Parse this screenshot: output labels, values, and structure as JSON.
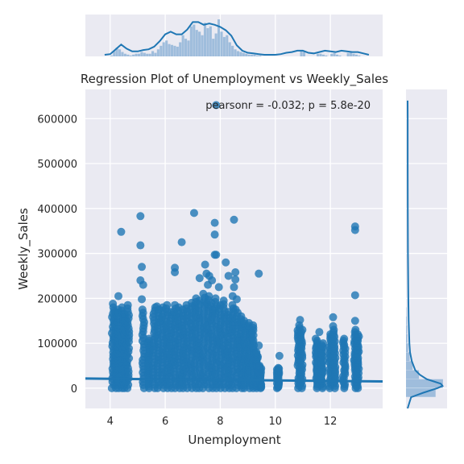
{
  "chart_data": {
    "type": "scatter",
    "title": "Regression Plot of Unemployment vs Weekly_Sales",
    "xlabel": "Unemployment",
    "ylabel": "Weekly_Sales",
    "annotation": "pearsonr = -0.032; p = 5.8e-20",
    "xlim": [
      3.1,
      13.9
    ],
    "ylim": [
      -45000,
      665000
    ],
    "xticks": [
      4,
      6,
      8,
      10,
      12
    ],
    "xtick_labels": [
      "4",
      "6",
      "8",
      "10",
      "12"
    ],
    "yticks": [
      0,
      100000,
      200000,
      300000,
      400000,
      500000,
      600000
    ],
    "ytick_labels": [
      "0",
      "100000",
      "200000",
      "300000",
      "400000",
      "500000",
      "600000"
    ],
    "grid": true,
    "colors": {
      "points": "#1f77b4",
      "regression": "#1f77b4",
      "hist": "#7fa9d3",
      "background": "#eaeaf2",
      "grid": "#ffffff"
    },
    "regression_line": {
      "x": [
        3.1,
        13.9
      ],
      "y": [
        21500,
        15000
      ]
    },
    "clusters": [
      {
        "x": 4.1,
        "ymax": 180000
      },
      {
        "x": 4.2,
        "ymax": 170000
      },
      {
        "x": 4.3,
        "ymax": 175000
      },
      {
        "x": 4.45,
        "ymax": 180000
      },
      {
        "x": 4.55,
        "ymax": 165000
      },
      {
        "x": 4.65,
        "ymax": 185000
      },
      {
        "x": 5.2,
        "ymax": 175000
      },
      {
        "x": 5.4,
        "ymax": 110000
      },
      {
        "x": 5.6,
        "ymax": 180000
      },
      {
        "x": 5.75,
        "ymax": 175000
      },
      {
        "x": 5.9,
        "ymax": 180000
      },
      {
        "x": 6.05,
        "ymax": 185000
      },
      {
        "x": 6.2,
        "ymax": 170000
      },
      {
        "x": 6.35,
        "ymax": 185000
      },
      {
        "x": 6.5,
        "ymax": 180000
      },
      {
        "x": 6.65,
        "ymax": 175000
      },
      {
        "x": 6.8,
        "ymax": 185000
      },
      {
        "x": 6.95,
        "ymax": 190000
      },
      {
        "x": 7.1,
        "ymax": 200000
      },
      {
        "x": 7.25,
        "ymax": 195000
      },
      {
        "x": 7.4,
        "ymax": 210000
      },
      {
        "x": 7.55,
        "ymax": 205000
      },
      {
        "x": 7.7,
        "ymax": 190000
      },
      {
        "x": 7.85,
        "ymax": 200000
      },
      {
        "x": 8.0,
        "ymax": 185000
      },
      {
        "x": 8.15,
        "ymax": 195000
      },
      {
        "x": 8.3,
        "ymax": 170000
      },
      {
        "x": 8.45,
        "ymax": 185000
      },
      {
        "x": 8.6,
        "ymax": 175000
      },
      {
        "x": 8.75,
        "ymax": 160000
      },
      {
        "x": 8.9,
        "ymax": 150000
      },
      {
        "x": 9.05,
        "ymax": 145000
      },
      {
        "x": 9.2,
        "ymax": 140000
      },
      {
        "x": 9.35,
        "ymax": 80000
      },
      {
        "x": 9.45,
        "ymax": 50000
      },
      {
        "x": 10.1,
        "ymax": 45000
      },
      {
        "x": 10.85,
        "ymax": 140000
      },
      {
        "x": 10.95,
        "ymax": 130000
      },
      {
        "x": 11.5,
        "ymax": 110000
      },
      {
        "x": 11.7,
        "ymax": 100000
      },
      {
        "x": 12.0,
        "ymax": 120000
      },
      {
        "x": 12.15,
        "ymax": 130000
      },
      {
        "x": 12.5,
        "ymax": 110000
      },
      {
        "x": 12.9,
        "ymax": 130000
      },
      {
        "x": 13.0,
        "ymax": 120000
      }
    ],
    "outliers": [
      {
        "x": 4.1,
        "y": 188000
      },
      {
        "x": 4.3,
        "y": 205000
      },
      {
        "x": 4.4,
        "y": 348000
      },
      {
        "x": 5.1,
        "y": 383000
      },
      {
        "x": 5.1,
        "y": 318000
      },
      {
        "x": 5.15,
        "y": 270000
      },
      {
        "x": 5.1,
        "y": 240000
      },
      {
        "x": 5.2,
        "y": 230000
      },
      {
        "x": 5.15,
        "y": 198000
      },
      {
        "x": 5.7,
        "y": 182000
      },
      {
        "x": 6.35,
        "y": 268000
      },
      {
        "x": 6.35,
        "y": 258000
      },
      {
        "x": 6.6,
        "y": 325000
      },
      {
        "x": 7.05,
        "y": 390000
      },
      {
        "x": 7.25,
        "y": 245000
      },
      {
        "x": 7.45,
        "y": 275000
      },
      {
        "x": 7.5,
        "y": 255000
      },
      {
        "x": 7.55,
        "y": 230000
      },
      {
        "x": 7.6,
        "y": 250000
      },
      {
        "x": 7.7,
        "y": 240000
      },
      {
        "x": 7.8,
        "y": 368000
      },
      {
        "x": 7.8,
        "y": 342000
      },
      {
        "x": 7.85,
        "y": 630000
      },
      {
        "x": 7.8,
        "y": 297000
      },
      {
        "x": 7.85,
        "y": 297000
      },
      {
        "x": 7.95,
        "y": 225000
      },
      {
        "x": 8.2,
        "y": 280000
      },
      {
        "x": 8.3,
        "y": 250000
      },
      {
        "x": 8.5,
        "y": 375000
      },
      {
        "x": 8.55,
        "y": 258000
      },
      {
        "x": 8.55,
        "y": 242000
      },
      {
        "x": 8.5,
        "y": 225000
      },
      {
        "x": 8.45,
        "y": 205000
      },
      {
        "x": 8.6,
        "y": 198000
      },
      {
        "x": 9.4,
        "y": 255000
      },
      {
        "x": 9.4,
        "y": 95000
      },
      {
        "x": 10.15,
        "y": 72000
      },
      {
        "x": 10.9,
        "y": 152000
      },
      {
        "x": 11.6,
        "y": 125000
      },
      {
        "x": 12.1,
        "y": 158000
      },
      {
        "x": 12.1,
        "y": 138000
      },
      {
        "x": 12.9,
        "y": 360000
      },
      {
        "x": 12.9,
        "y": 352000
      },
      {
        "x": 12.9,
        "y": 207000
      },
      {
        "x": 12.9,
        "y": 150000
      }
    ],
    "top_marginal_hist": {
      "bins": [
        3.9,
        4.0,
        4.1,
        4.2,
        4.3,
        4.4,
        4.5,
        4.6,
        4.7,
        4.8,
        4.9,
        5.0,
        5.1,
        5.2,
        5.3,
        5.4,
        5.5,
        5.6,
        5.7,
        5.8,
        5.9,
        6.0,
        6.1,
        6.2,
        6.3,
        6.4,
        6.5,
        6.6,
        6.7,
        6.8,
        6.9,
        7.0,
        7.1,
        7.2,
        7.3,
        7.4,
        7.5,
        7.6,
        7.7,
        7.8,
        7.9,
        8.0,
        8.1,
        8.2,
        8.3,
        8.4,
        8.5,
        8.6,
        8.7,
        8.8,
        8.9,
        9.0,
        9.1,
        9.2,
        9.3,
        9.4,
        9.5,
        9.6,
        9.7,
        9.8,
        9.9,
        10.0,
        10.1,
        10.2,
        10.3,
        10.4,
        10.5,
        10.6,
        10.7,
        10.8,
        10.9,
        11.0,
        11.1,
        11.2,
        11.3,
        11.4,
        11.5,
        11.6,
        11.7,
        11.8,
        11.9,
        12.0,
        12.1,
        12.2,
        12.3,
        12.4,
        12.5,
        12.6,
        12.7,
        12.8,
        12.9,
        13.0,
        13.1
      ],
      "counts": [
        0,
        1,
        6,
        10,
        8,
        5,
        3,
        2,
        1,
        2,
        3,
        3,
        5,
        4,
        3,
        3,
        6,
        4,
        8,
        12,
        16,
        18,
        14,
        13,
        12,
        11,
        16,
        24,
        20,
        18,
        34,
        36,
        30,
        28,
        24,
        38,
        32,
        34,
        20,
        26,
        42,
        28,
        22,
        24,
        16,
        12,
        8,
        6,
        5,
        4,
        3,
        2,
        2,
        2,
        1,
        1,
        0,
        0,
        0,
        0,
        0,
        0,
        0,
        0,
        0,
        0,
        0,
        0,
        0,
        0,
        6,
        5,
        0,
        0,
        0,
        0,
        3,
        3,
        2,
        1,
        0,
        3,
        4,
        2,
        1,
        0,
        0,
        4,
        5,
        3,
        2,
        1,
        0
      ]
    },
    "top_marginal_kde": {
      "x": [
        3.8,
        4.0,
        4.2,
        4.4,
        4.6,
        4.8,
        5.0,
        5.2,
        5.4,
        5.6,
        5.8,
        6.0,
        6.2,
        6.4,
        6.6,
        6.8,
        7.0,
        7.2,
        7.4,
        7.6,
        7.8,
        8.0,
        8.2,
        8.4,
        8.6,
        8.8,
        9.0,
        9.2,
        9.4,
        9.6,
        9.8,
        10.0,
        10.2,
        10.4,
        10.6,
        10.8,
        11.0,
        11.2,
        11.4,
        11.6,
        11.8,
        12.0,
        12.2,
        12.4,
        12.6,
        12.8,
        13.0,
        13.2,
        13.4
      ],
      "y": [
        0.0,
        0.01,
        0.08,
        0.15,
        0.09,
        0.05,
        0.05,
        0.07,
        0.08,
        0.12,
        0.2,
        0.3,
        0.34,
        0.3,
        0.3,
        0.37,
        0.48,
        0.48,
        0.44,
        0.46,
        0.44,
        0.41,
        0.36,
        0.28,
        0.14,
        0.06,
        0.03,
        0.02,
        0.01,
        0.0,
        0.0,
        0.0,
        0.01,
        0.03,
        0.04,
        0.06,
        0.06,
        0.03,
        0.02,
        0.04,
        0.06,
        0.05,
        0.04,
        0.06,
        0.05,
        0.04,
        0.04,
        0.02,
        0.0
      ]
    },
    "right_marginal_hist": {
      "bins": [
        -20000,
        0,
        20000,
        40000,
        60000,
        80000,
        100000,
        120000,
        140000,
        160000,
        180000,
        200000
      ],
      "counts": [
        0.8,
        1.0,
        0.35,
        0.18,
        0.1,
        0.06,
        0.04,
        0.03,
        0.02,
        0.01,
        0.0
      ]
    },
    "right_marginal_kde": {
      "y": [
        -45000,
        -20000,
        -10000,
        0,
        5000,
        10000,
        15000,
        20000,
        30000,
        40000,
        60000,
        80000,
        100000,
        150000,
        200000,
        300000,
        400000,
        500000,
        600000,
        640000
      ],
      "x": [
        0.0,
        0.1,
        0.45,
        0.85,
        1.0,
        0.95,
        0.75,
        0.55,
        0.35,
        0.22,
        0.12,
        0.07,
        0.05,
        0.03,
        0.02,
        0.01,
        0.005,
        0.003,
        0.002,
        0.0
      ]
    }
  }
}
